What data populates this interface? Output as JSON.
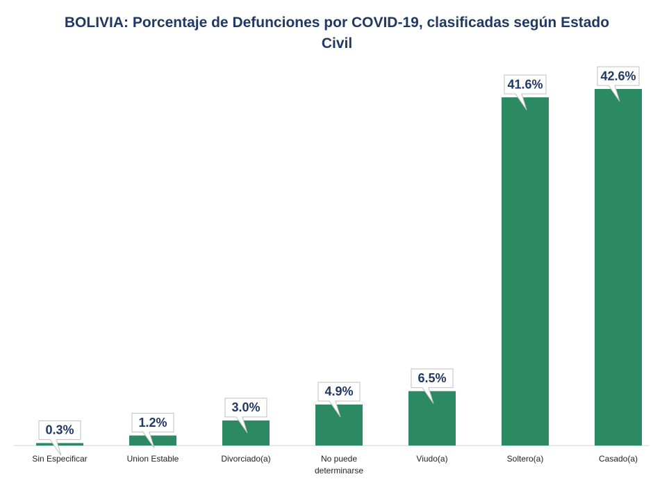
{
  "chart_data": {
    "type": "bar",
    "title": "BOLIVIA: Porcentaje de Defunciones por COVID-19, clasificadas según Estado Civil",
    "categories": [
      "Sin Especificar",
      "Union Estable",
      "Divorciado(a)",
      "No puede determinarse",
      "Viudo(a)",
      "Soltero(a)",
      "Casado(a)"
    ],
    "values": [
      0.3,
      1.2,
      3.0,
      4.9,
      6.5,
      41.6,
      42.6
    ],
    "value_labels": [
      "0.3%",
      "1.2%",
      "3.0%",
      "4.9%",
      "6.5%",
      "41.6%",
      "42.6%"
    ],
    "color": "#2b8a63"
  }
}
